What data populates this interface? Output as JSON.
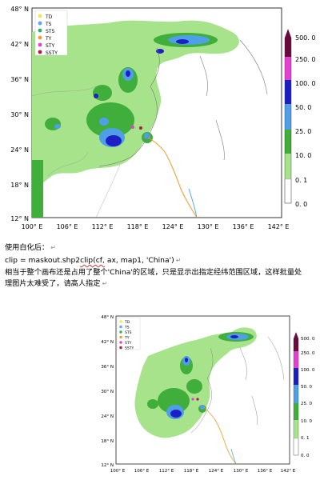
{
  "figure1": {
    "lat_labels": [
      "48° N",
      "42° N",
      "36° N",
      "30° N",
      "24° N",
      "18° N",
      "12° N"
    ],
    "lon_labels": [
      "100° E",
      "106° E",
      "112° E",
      "118° E",
      "124° E",
      "130° E",
      "136° E",
      "142° E"
    ],
    "legend": [
      {
        "code": "TD",
        "color": "#f2e64a"
      },
      {
        "code": "TS",
        "color": "#5aa7f0"
      },
      {
        "code": "STS",
        "color": "#2fb06a"
      },
      {
        "code": "TY",
        "color": "#f29c2a"
      },
      {
        "code": "STY",
        "color": "#e43fd0"
      },
      {
        "code": "SSTY",
        "color": "#b0174a"
      }
    ],
    "colorbar_labels": [
      "500. 0",
      "250. 0",
      "100. 0",
      "50. 0",
      "25. 0",
      "10. 0",
      "0. 1",
      "0. 0"
    ]
  },
  "text": {
    "line1": "使用白化后：",
    "line2_a": "clip = maskout.shp2",
    "line2_b": "clip(cf,",
    "line2_c": " ax, map1, 'China')",
    "line3": "相当于整个画布还是占用了整个'China'的区域，只是显示出指定经纬范围区域，这样批量处",
    "line4": "理图片太难受了，请高人指定",
    "return_mark": "↵"
  },
  "figure2": {
    "lat_labels": [
      "48° N",
      "42° N",
      "36° N",
      "30° N",
      "24° N",
      "18° N",
      "12° N"
    ],
    "lon_labels": [
      "100° E",
      "106° E",
      "112° E",
      "118° E",
      "124° E",
      "130° E",
      "136° E",
      "142° E"
    ],
    "legend": [
      {
        "code": "TD",
        "color": "#f2e64a"
      },
      {
        "code": "TS",
        "color": "#5aa7f0"
      },
      {
        "code": "STS",
        "color": "#2fb06a"
      },
      {
        "code": "TY",
        "color": "#f29c2a"
      },
      {
        "code": "STY",
        "color": "#e43fd0"
      },
      {
        "code": "SSTY",
        "color": "#b0174a"
      }
    ],
    "colorbar_labels": [
      "500. 0",
      "250. 0",
      "100. 0",
      "50. 0",
      "25. 0",
      "10. 0",
      "0. 1",
      "0. 0"
    ]
  }
}
